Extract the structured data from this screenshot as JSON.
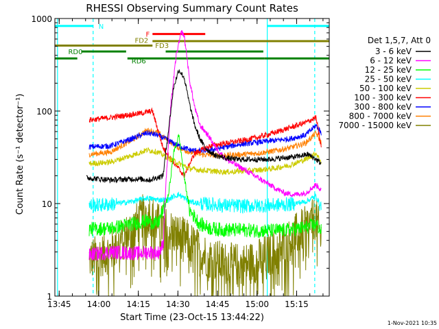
{
  "chart_data": {
    "type": "line",
    "title": "RHESSI Observing Summary Count Rates",
    "xlabel": "Start Time (23-Oct-15 13:44:22)",
    "ylabel": "Count Rate (s⁻¹ detector⁻¹)",
    "yscale": "log",
    "ylim": [
      1,
      1000
    ],
    "xlim_minutes": [
      -1,
      103
    ],
    "x_ticks": [
      "13:45",
      "14:00",
      "14:15",
      "14:30",
      "14:45",
      "15:00",
      "15:15"
    ],
    "y_ticks": [
      "1",
      "10",
      "100",
      "1000"
    ],
    "footer": "1-Nov-2021 10:35",
    "legend_title": "Det 1,5,7, Att 0",
    "legend_position": "right",
    "series": [
      {
        "name": "3 - 6 keV",
        "color": "#000000",
        "x": [
          11,
          20,
          30,
          35,
          40,
          42,
          44,
          46,
          48,
          50,
          52,
          54,
          56,
          58,
          60,
          62,
          64,
          66,
          68,
          70,
          75,
          80,
          85,
          90,
          95,
          98,
          100
        ],
        "y": [
          19,
          18,
          18.5,
          18,
          20,
          60,
          180,
          280,
          230,
          120,
          70,
          50,
          40,
          36,
          33,
          32,
          31,
          30.5,
          30,
          30,
          30,
          30,
          31,
          32,
          34,
          30,
          27
        ]
      },
      {
        "name": "6 - 12 keV",
        "color": "#ff00ff",
        "x": [
          12,
          20,
          30,
          35,
          38,
          40,
          41,
          43,
          45,
          47,
          48,
          49,
          50,
          52,
          54,
          56,
          58,
          60,
          64,
          70,
          76,
          82,
          86,
          90,
          94,
          98,
          100
        ],
        "y": [
          2.8,
          3,
          2.9,
          3,
          2.9,
          3.5,
          15,
          120,
          400,
          720,
          650,
          400,
          220,
          110,
          70,
          60,
          50,
          40,
          30,
          24,
          19,
          15,
          13,
          12.5,
          13,
          16,
          14
        ]
      },
      {
        "name": "12 - 25 keV",
        "color": "#00ff00",
        "x": [
          12,
          20,
          28,
          34,
          38,
          42,
          44,
          46,
          48,
          50,
          54,
          58,
          62,
          66,
          70,
          76,
          82,
          88,
          94,
          98,
          100
        ],
        "y": [
          5.3,
          5.4,
          6,
          6.5,
          6,
          12,
          35,
          55,
          20,
          8.5,
          6,
          5.4,
          5.2,
          5.2,
          5.2,
          5.1,
          5.1,
          5.2,
          5.5,
          6,
          5
        ]
      },
      {
        "name": "25 - 50 keV",
        "color": "#00ffff",
        "x": [
          12,
          20,
          28,
          34,
          38,
          42,
          44,
          46,
          48,
          50,
          54,
          58,
          62,
          66,
          70,
          76,
          82,
          88,
          94,
          98,
          100
        ],
        "y": [
          9.5,
          9.8,
          10.5,
          11.5,
          11,
          11,
          12,
          12.5,
          11.5,
          10.5,
          10,
          9.8,
          9.6,
          9.5,
          9.4,
          9.5,
          9.6,
          9.8,
          10.5,
          12,
          9
        ]
      },
      {
        "name": "50 - 100 keV",
        "color": "#cccc00",
        "x": [
          12,
          20,
          28,
          34,
          38,
          42,
          46,
          50,
          54,
          58,
          62,
          66,
          70,
          76,
          82,
          88,
          94,
          98,
          100
        ],
        "y": [
          27,
          28,
          33,
          38,
          36,
          31,
          27,
          24,
          23,
          22.5,
          22,
          22,
          22.5,
          23,
          24,
          26,
          30,
          35,
          28
        ]
      },
      {
        "name": "100 - 300 keV",
        "color": "#ff0000",
        "x": [
          12,
          20,
          26,
          32,
          36,
          40,
          44,
          48,
          52,
          58,
          64,
          70,
          76,
          82,
          88,
          94,
          98,
          100
        ],
        "y": [
          80,
          85,
          90,
          95,
          100,
          40,
          28,
          20,
          35,
          42,
          45,
          48,
          52,
          58,
          66,
          75,
          85,
          40
        ]
      },
      {
        "name": "300 - 800 keV",
        "color": "#0000ff",
        "x": [
          12,
          20,
          28,
          34,
          38,
          42,
          46,
          50,
          54,
          58,
          62,
          66,
          70,
          76,
          82,
          88,
          94,
          98,
          100
        ],
        "y": [
          41,
          42,
          50,
          58,
          55,
          48,
          42,
          38,
          37,
          38,
          40,
          42,
          44,
          46,
          48,
          50,
          55,
          70,
          58
        ]
      },
      {
        "name": "800 - 7000 keV",
        "color": "#ff8000",
        "x": [
          12,
          20,
          28,
          34,
          38,
          42,
          46,
          50,
          54,
          58,
          62,
          66,
          70,
          76,
          82,
          88,
          94,
          98,
          100
        ],
        "y": [
          34,
          36,
          48,
          62,
          58,
          48,
          40,
          36,
          34,
          33.5,
          33,
          33.5,
          34,
          35,
          37,
          40,
          45,
          58,
          45
        ]
      },
      {
        "name": "7000 - 15000 keV",
        "color": "#808000",
        "x": [
          12,
          20,
          26,
          30,
          34,
          38,
          42,
          46,
          50,
          54,
          58,
          62,
          66,
          70,
          74,
          78,
          82,
          86,
          90,
          94,
          98,
          100
        ],
        "y": [
          2.5,
          3,
          4.5,
          6,
          8.5,
          6,
          5.2,
          4.5,
          3.8,
          3,
          2.6,
          2.3,
          2.2,
          2.2,
          2.3,
          2.6,
          3,
          3.6,
          4.5,
          5.5,
          7,
          4
        ]
      }
    ],
    "annotations": [
      {
        "label": "N",
        "color": "#00ffff",
        "segments": [
          [
            -1,
            13.5
          ],
          [
            79.5,
            103
          ]
        ],
        "level": 830
      },
      {
        "label": "F",
        "color": "#ff0000",
        "segments": [
          [
            36,
            56
          ]
        ],
        "level": 680
      },
      {
        "label": "FD2",
        "color": "#808000",
        "segments": [
          [
            -1,
            36
          ]
        ],
        "level": 510
      },
      {
        "label": "FD3",
        "color": "#808000",
        "segments": [
          [
            36,
            103
          ]
        ],
        "level": 570
      },
      {
        "label": "RD0",
        "color": "#008000",
        "segments": [
          [
            9,
            26
          ],
          [
            41,
            78
          ]
        ],
        "level": 440
      },
      {
        "label": "RD6",
        "color": "#008000",
        "segments": [
          [
            -1,
            7.5
          ],
          [
            26.5,
            78.5
          ],
          [
            78.5,
            103
          ]
        ],
        "level": 370
      }
    ],
    "vertical_markers": [
      {
        "color": "#00ffff",
        "x": 0,
        "style": "solid"
      },
      {
        "color": "#00ffff",
        "x": 13.5,
        "style": "dashed"
      },
      {
        "color": "#00ffff",
        "x": 79.5,
        "style": "solid"
      },
      {
        "color": "#00ffff",
        "x": 97.5,
        "style": "dashed"
      }
    ]
  }
}
